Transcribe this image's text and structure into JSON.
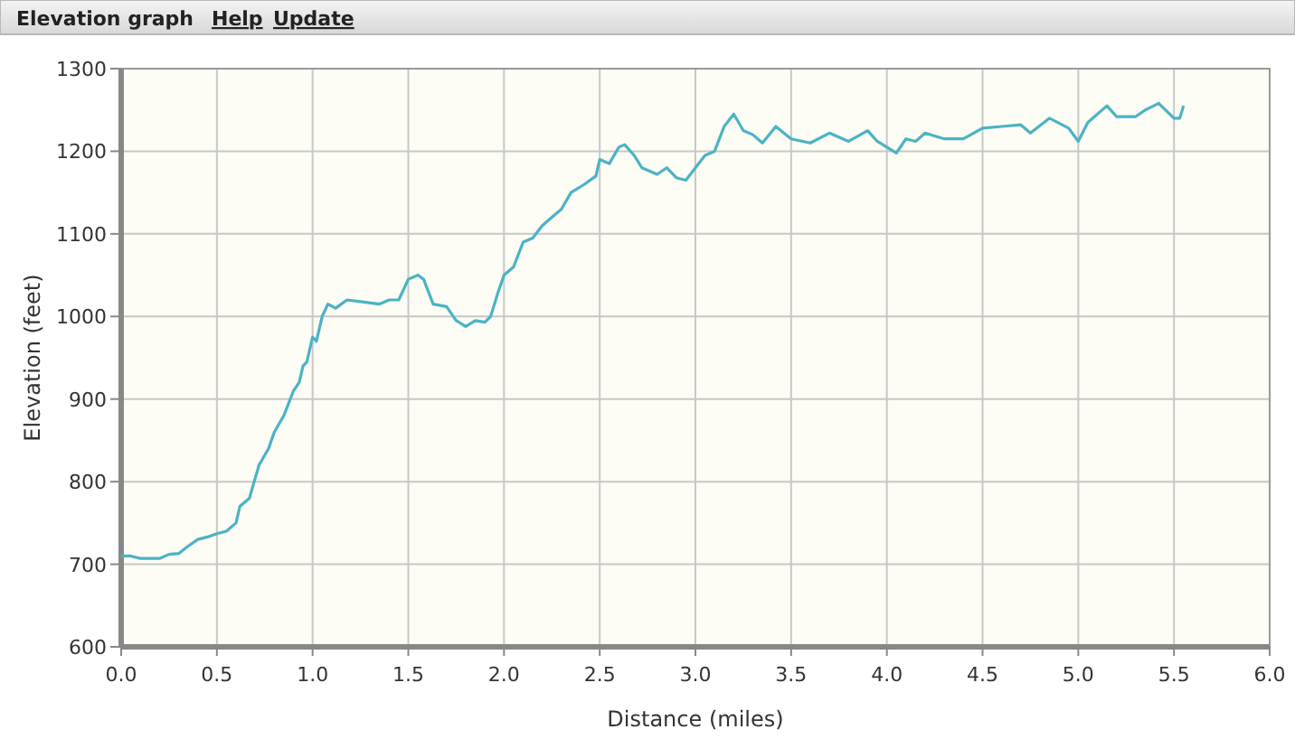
{
  "chart_data": {
    "type": "line",
    "title": "Elevation graph",
    "annotations": [
      "Help",
      "Update"
    ],
    "xlabel": "Distance (miles)",
    "ylabel": "Elevation (feet)",
    "x": [
      0,
      0.05,
      0.1,
      0.2,
      0.25,
      0.3,
      0.35,
      0.4,
      0.45,
      0.5,
      0.55,
      0.6,
      0.62,
      0.67,
      0.72,
      0.77,
      0.8,
      0.85,
      0.9,
      0.93,
      0.95,
      0.97,
      1.0,
      1.02,
      1.05,
      1.08,
      1.12,
      1.18,
      1.25,
      1.35,
      1.4,
      1.45,
      1.5,
      1.55,
      1.58,
      1.63,
      1.7,
      1.75,
      1.8,
      1.85,
      1.9,
      1.93,
      1.97,
      2.0,
      2.05,
      2.1,
      2.15,
      2.2,
      2.25,
      2.3,
      2.35,
      2.42,
      2.48,
      2.5,
      2.55,
      2.6,
      2.63,
      2.68,
      2.72,
      2.8,
      2.85,
      2.9,
      2.95,
      3.0,
      3.05,
      3.1,
      3.15,
      3.2,
      3.25,
      3.3,
      3.35,
      3.42,
      3.5,
      3.6,
      3.7,
      3.8,
      3.9,
      3.95,
      4.0,
      4.05,
      4.1,
      4.15,
      4.2,
      4.3,
      4.4,
      4.5,
      4.6,
      4.7,
      4.75,
      4.85,
      4.95,
      5.0,
      5.05,
      5.15,
      5.2,
      5.3,
      5.35,
      5.42,
      5.5,
      5.53,
      5.55
    ],
    "series": [
      {
        "color": "#4bb3c4",
        "values": [
          710,
          710,
          707,
          707,
          712,
          713,
          722,
          730,
          733,
          737,
          740,
          750,
          770,
          780,
          820,
          840,
          860,
          880,
          910,
          920,
          940,
          945,
          975,
          970,
          1000,
          1015,
          1010,
          1020,
          1018,
          1015,
          1020,
          1020,
          1045,
          1050,
          1045,
          1015,
          1012,
          995,
          988,
          995,
          993,
          1000,
          1030,
          1050,
          1060,
          1090,
          1095,
          1110,
          1120,
          1130,
          1150,
          1160,
          1170,
          1190,
          1185,
          1205,
          1208,
          1195,
          1180,
          1172,
          1180,
          1168,
          1165,
          1180,
          1195,
          1200,
          1230,
          1245,
          1225,
          1220,
          1210,
          1230,
          1215,
          1210,
          1222,
          1212,
          1225,
          1212,
          1205,
          1198,
          1215,
          1212,
          1222,
          1215,
          1215,
          1228,
          1230,
          1232,
          1222,
          1240,
          1228,
          1212,
          1235,
          1255,
          1242,
          1242,
          1250,
          1258,
          1240,
          1240,
          1255
        ]
      }
    ],
    "xlim": [
      0,
      6
    ],
    "xticks": [
      {
        "value": 0,
        "label": "0.0"
      },
      {
        "value": 0.5,
        "label": "0.5"
      },
      {
        "value": 1,
        "label": "1.0"
      },
      {
        "value": 1.5,
        "label": "1.5"
      },
      {
        "value": 2,
        "label": "2.0"
      },
      {
        "value": 2.5,
        "label": "2.5"
      },
      {
        "value": 3,
        "label": "3.0"
      },
      {
        "value": 3.5,
        "label": "3.5"
      },
      {
        "value": 4,
        "label": "4.0"
      },
      {
        "value": 4.5,
        "label": "4.5"
      },
      {
        "value": 5,
        "label": "5.0"
      },
      {
        "value": 5.5,
        "label": "5.5"
      },
      {
        "value": 6,
        "label": "6.0"
      }
    ],
    "ylim": [
      600,
      1300
    ],
    "yticks": [
      600,
      700,
      800,
      900,
      1000,
      1100,
      1200,
      1300
    ],
    "grid": true,
    "line_style": "solid",
    "marker": "none"
  }
}
